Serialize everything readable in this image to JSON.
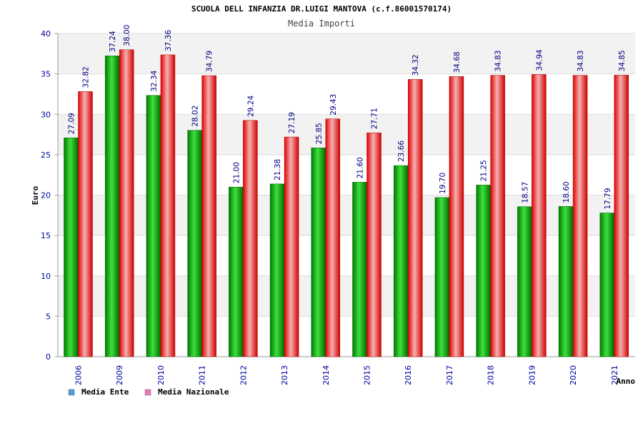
{
  "chart_data": {
    "type": "bar",
    "title": "SCUOLA DELL INFANZIA DR.LUIGI MANTOVA (c.f.86001570174)",
    "subtitle": "Media Importi",
    "xlabel": "Anno",
    "ylabel": "Euro",
    "ylim": [
      0,
      40
    ],
    "yticks": [
      "0",
      "5",
      "10",
      "15",
      "20",
      "25",
      "30",
      "35",
      "40"
    ],
    "categories": [
      "2006",
      "2009",
      "2010",
      "2011",
      "2012",
      "2013",
      "2014",
      "2015",
      "2016",
      "2017",
      "2018",
      "2019",
      "2020",
      "2021"
    ],
    "series": [
      {
        "name": "Media Ente",
        "values": [
          27.09,
          37.24,
          32.34,
          28.02,
          21.0,
          21.38,
          25.85,
          21.6,
          23.66,
          19.7,
          21.25,
          18.57,
          18.6,
          17.79
        ],
        "labels": [
          "27.09",
          "37.24",
          "32.34",
          "28.02",
          "21.00",
          "21.38",
          "25.85",
          "21.60",
          "23.66",
          "19.70",
          "21.25",
          "18.57",
          "18.60",
          "17.79"
        ]
      },
      {
        "name": "Media Nazionale",
        "values": [
          32.82,
          38.0,
          37.36,
          34.79,
          29.24,
          27.19,
          29.43,
          27.71,
          34.32,
          34.68,
          34.83,
          34.94,
          34.83,
          34.85
        ],
        "labels": [
          "32.82",
          "38.00",
          "37.36",
          "34.79",
          "29.24",
          "27.19",
          "29.43",
          "27.71",
          "34.32",
          "34.68",
          "34.83",
          "34.94",
          "34.83",
          "34.85"
        ]
      }
    ],
    "legend": [
      {
        "label": "Media Ente",
        "color": "#5b9bd5"
      },
      {
        "label": "Media Nazionale",
        "color": "#e07fb0"
      }
    ],
    "legend_placement": "bottom-left",
    "grid": true,
    "colors": {
      "ente_dark": "#008c00",
      "ente_light": "#3ee03e",
      "naz_dark": "#e00000",
      "naz_light": "#f4a6a6",
      "axis_text": "#0000a0",
      "band": "#f2f2f2"
    }
  }
}
